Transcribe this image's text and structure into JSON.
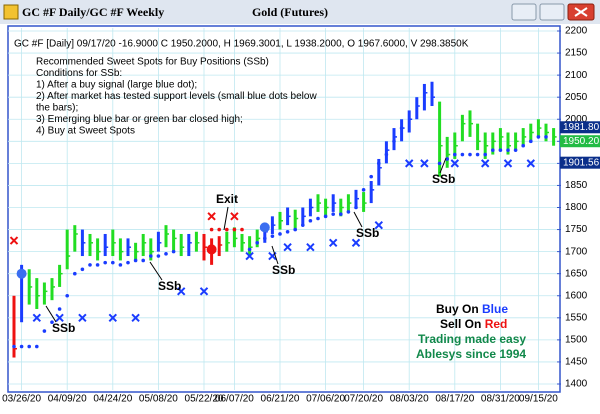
{
  "window": {
    "title": "GC #F Daily/GC #F Weekly",
    "center_title": "Gold (Futures)"
  },
  "chart_data": {
    "type": "ohlc",
    "header": "GC #F [Daily] 09/17/20   -16.9000 C 1950.2000, H 1969.3001, L 1938.2000, O 1967.6000, V 298.3850K",
    "notes": [
      "Recommended Sweet Spots for Buy Positions (SSb)",
      "Conditions for SSb:",
      "1) After a buy signal (large blue dot);",
      "2) After market has tested support levels (small blue dots below",
      "    the bars);",
      "3) Emerging blue bar or green bar closed high;",
      "4) Buy at Sweet Spots"
    ],
    "annotations": [
      "SSb",
      "SSb",
      "SSb",
      "SSb",
      "SSb",
      "Exit"
    ],
    "legend": [
      "Buy On ",
      "Blue",
      "Sell On ",
      "Red",
      "Trading made easy",
      "Ablesys since 1994"
    ],
    "categories": [
      null,
      "03/26/20",
      null,
      null,
      null,
      null,
      null,
      "04/09/20",
      null,
      null,
      null,
      null,
      null,
      "04/24/20",
      null,
      null,
      null,
      null,
      null,
      "05/08/20",
      null,
      null,
      null,
      null,
      null,
      "05/22/20",
      null,
      null,
      null,
      "06/07/20",
      null,
      null,
      null,
      null,
      null,
      "06/21/20",
      null,
      null,
      null,
      null,
      null,
      "07/06/20",
      null,
      null,
      null,
      null,
      "07/20/20",
      null,
      null,
      null,
      null,
      null,
      "08/03/20",
      null,
      null,
      null,
      null,
      null,
      "08/17/20",
      null,
      null,
      null,
      null,
      null,
      "08/31/20",
      null,
      null,
      null,
      null,
      "09/15/20",
      null,
      null
    ],
    "close": [
      1480,
      1650,
      1620,
      1600,
      1610,
      1620,
      1650,
      1690,
      1740,
      1720,
      1720,
      1700,
      1710,
      1720,
      1700,
      1710,
      1700,
      1720,
      1700,
      1720,
      1740,
      1730,
      1710,
      1720,
      1720,
      1710,
      1700,
      1715,
      1720,
      1730,
      1720,
      1710,
      1730,
      1745,
      1760,
      1770,
      1780,
      1775,
      1780,
      1800,
      1810,
      1800,
      1810,
      1800,
      1810,
      1820,
      1810,
      1840,
      1890,
      1930,
      1960,
      1980,
      2000,
      2030,
      2060,
      2050,
      1940,
      1920,
      1940,
      1990,
      1990,
      1950,
      1940,
      1950,
      1960,
      1940,
      1950,
      1960,
      1970,
      1980,
      1970,
      1960
    ],
    "high": [
      1600,
      1670,
      1660,
      1640,
      1630,
      1640,
      1670,
      1750,
      1760,
      1750,
      1740,
      1730,
      1740,
      1750,
      1730,
      1730,
      1720,
      1740,
      1730,
      1745,
      1760,
      1750,
      1740,
      1740,
      1745,
      1740,
      1730,
      1735,
      1745,
      1755,
      1740,
      1735,
      1750,
      1765,
      1780,
      1790,
      1800,
      1795,
      1800,
      1820,
      1830,
      1820,
      1830,
      1820,
      1830,
      1840,
      1835,
      1860,
      1910,
      1950,
      1980,
      2000,
      2020,
      2050,
      2080,
      2085,
      2040,
      1960,
      1970,
      2010,
      2020,
      1990,
      1970,
      1970,
      1980,
      1970,
      1970,
      1980,
      1990,
      2000,
      1990,
      1980
    ],
    "low": [
      1460,
      1540,
      1580,
      1570,
      1580,
      1590,
      1620,
      1660,
      1700,
      1690,
      1690,
      1680,
      1690,
      1690,
      1680,
      1690,
      1680,
      1690,
      1680,
      1700,
      1710,
      1700,
      1690,
      1690,
      1700,
      1680,
      1670,
      1690,
      1700,
      1710,
      1700,
      1690,
      1710,
      1720,
      1740,
      1750,
      1760,
      1750,
      1760,
      1780,
      1790,
      1780,
      1790,
      1780,
      1790,
      1800,
      1790,
      1810,
      1850,
      1900,
      1930,
      1950,
      1970,
      2000,
      2020,
      2030,
      1870,
      1890,
      1910,
      1950,
      1960,
      1930,
      1910,
      1920,
      1930,
      1920,
      1930,
      1940,
      1950,
      1960,
      1950,
      1940
    ],
    "bar_colors": [
      "#ee1111",
      "#1a3cff",
      "#22dd22",
      "#22dd22",
      "#22dd22",
      "#22dd22",
      "#22dd22",
      "#22dd22",
      "#22dd22",
      "#1a3cff",
      "#22dd22",
      "#22dd22",
      "#1a3cff",
      "#22dd22",
      "#22dd22",
      "#1a3cff",
      "#22dd22",
      "#22dd22",
      "#22dd22",
      "#1a3cff",
      "#22dd22",
      "#22dd22",
      "#22dd22",
      "#1a3cff",
      "#22dd22",
      "#ee1111",
      "#ee1111",
      "#ee1111",
      "#22dd22",
      "#22dd22",
      "#22dd22",
      "#22dd22",
      "#22dd22",
      "#1a3cff",
      "#1a3cff",
      "#22dd22",
      "#1a3cff",
      "#22dd22",
      "#1a3cff",
      "#1a3cff",
      "#22dd22",
      "#22dd22",
      "#1a3cff",
      "#22dd22",
      "#22dd22",
      "#1a3cff",
      "#22dd22",
      "#1a3cff",
      "#1a3cff",
      "#1a3cff",
      "#1a3cff",
      "#1a3cff",
      "#1a3cff",
      "#1a3cff",
      "#1a3cff",
      "#1a3cff",
      "#22dd22",
      "#22dd22",
      "#22dd22",
      "#22dd22",
      "#22dd22",
      "#22dd22",
      "#22dd22",
      "#22dd22",
      "#22dd22",
      "#22dd22",
      "#22dd22",
      "#22dd22",
      "#22dd22",
      "#22dd22",
      "#22dd22",
      "#22dd22"
    ],
    "buy_dot": {
      "color": "#3a6ef0",
      "values": [
        null,
        1650,
        null,
        null,
        null,
        null,
        null,
        null,
        null,
        null,
        null,
        null,
        null,
        null,
        null,
        null,
        null,
        null,
        null,
        null,
        null,
        null,
        null,
        null,
        null,
        null,
        null,
        null,
        null,
        null,
        null,
        null,
        null,
        1755,
        null,
        null,
        null,
        null,
        null,
        null,
        null,
        null,
        null,
        null,
        null,
        null,
        null,
        null,
        null,
        null,
        null,
        null,
        null,
        null,
        null,
        null,
        null,
        null,
        null,
        null,
        null,
        null,
        null,
        null,
        null,
        null,
        null,
        null,
        null,
        null,
        null,
        null
      ]
    },
    "sell_dot": {
      "color": "#ee1111",
      "values": [
        null,
        null,
        null,
        null,
        null,
        null,
        null,
        null,
        null,
        null,
        null,
        null,
        null,
        null,
        null,
        null,
        null,
        null,
        null,
        null,
        null,
        null,
        null,
        null,
        null,
        null,
        1705,
        null,
        null,
        null,
        null,
        null,
        null,
        null,
        null,
        null,
        null,
        null,
        null,
        null,
        null,
        null,
        null,
        null,
        null,
        null,
        null,
        null,
        null,
        null,
        null,
        null,
        null,
        null,
        null,
        null,
        null,
        null,
        null,
        null,
        null,
        null,
        null,
        null,
        null,
        null,
        null,
        null,
        null,
        null,
        null,
        null
      ]
    },
    "blue_dots": {
      "color": "#1a3cff",
      "values": [
        1485,
        1485,
        1485,
        1485,
        1520,
        1540,
        1570,
        1600,
        1650,
        1660,
        1670,
        1670,
        1675,
        1675,
        1670,
        1675,
        1680,
        1680,
        1690,
        1690,
        1695,
        1700,
        null,
        null,
        null,
        null,
        null,
        null,
        null,
        null,
        null,
        1705,
        1720,
        1730,
        1735,
        1740,
        1745,
        1750,
        1760,
        1770,
        1775,
        1780,
        1785,
        1785,
        1790,
        1800,
        1840,
        1870,
        1900,
        1920,
        1950,
        1980,
        null,
        null,
        null,
        null,
        1900,
        1910,
        1920,
        1920,
        1920,
        1920,
        1920,
        1930,
        1930,
        1930,
        1930,
        1940,
        1950,
        1960,
        1960,
        null
      ]
    },
    "red_dots": {
      "color": "#ee1111",
      "values": [
        null,
        null,
        null,
        null,
        null,
        null,
        null,
        null,
        null,
        null,
        null,
        null,
        null,
        null,
        null,
        null,
        null,
        null,
        null,
        null,
        null,
        null,
        null,
        null,
        null,
        null,
        1750,
        1750,
        1750,
        1750,
        1750,
        null,
        null,
        null,
        null,
        null,
        null,
        null,
        null,
        null,
        null,
        null,
        null,
        null,
        null,
        null,
        null,
        null,
        null,
        null,
        null,
        null,
        null,
        null,
        null,
        null,
        null,
        null,
        null,
        null,
        null,
        null,
        null,
        null,
        null,
        null,
        null,
        null,
        null,
        null,
        null,
        null
      ]
    },
    "blue_x": {
      "color": "#1a3cff",
      "values": [
        null,
        null,
        null,
        1550,
        null,
        null,
        1550,
        null,
        null,
        1550,
        null,
        null,
        null,
        1550,
        null,
        null,
        1550,
        null,
        null,
        null,
        null,
        null,
        1610,
        null,
        null,
        1610,
        null,
        null,
        null,
        null,
        null,
        1690,
        null,
        null,
        1690,
        null,
        1710,
        null,
        null,
        1710,
        null,
        null,
        1720,
        null,
        null,
        1720,
        null,
        null,
        1760,
        null,
        null,
        null,
        1900,
        null,
        1900,
        null,
        null,
        null,
        1900,
        null,
        null,
        null,
        1900,
        null,
        null,
        1900,
        null,
        null,
        1900,
        null,
        null,
        null
      ]
    },
    "red_x": {
      "color": "#ee1111",
      "values": [
        1725,
        null,
        null,
        null,
        null,
        null,
        null,
        null,
        null,
        null,
        null,
        null,
        null,
        null,
        null,
        null,
        null,
        null,
        null,
        null,
        null,
        null,
        null,
        null,
        null,
        null,
        1780,
        null,
        null,
        1780,
        null,
        null,
        null,
        null,
        null,
        null,
        null,
        null,
        null,
        null,
        null,
        null,
        null,
        null,
        null,
        null,
        null,
        null,
        null,
        null,
        null,
        null,
        null,
        null,
        null,
        null,
        null,
        null,
        null,
        null,
        null,
        null,
        null,
        null,
        null,
        null,
        null,
        null,
        null,
        null,
        null,
        null
      ]
    },
    "ylim": [
      1400,
      2200
    ],
    "yticks": [
      1400,
      1450,
      1500,
      1550,
      1600,
      1650,
      1700,
      1750,
      1800,
      1850,
      1900,
      1950,
      2000,
      2050,
      2100,
      2150,
      2200
    ],
    "grid": true,
    "price_boxes": [
      {
        "value": 1981.8,
        "label": "1981.80",
        "color": "#0b2f8a"
      },
      {
        "value": 1950.2,
        "label": "1950.20",
        "color": "#22bb44"
      },
      {
        "value": 1901.56,
        "label": "1901.56",
        "color": "#0b2f8a"
      }
    ]
  }
}
